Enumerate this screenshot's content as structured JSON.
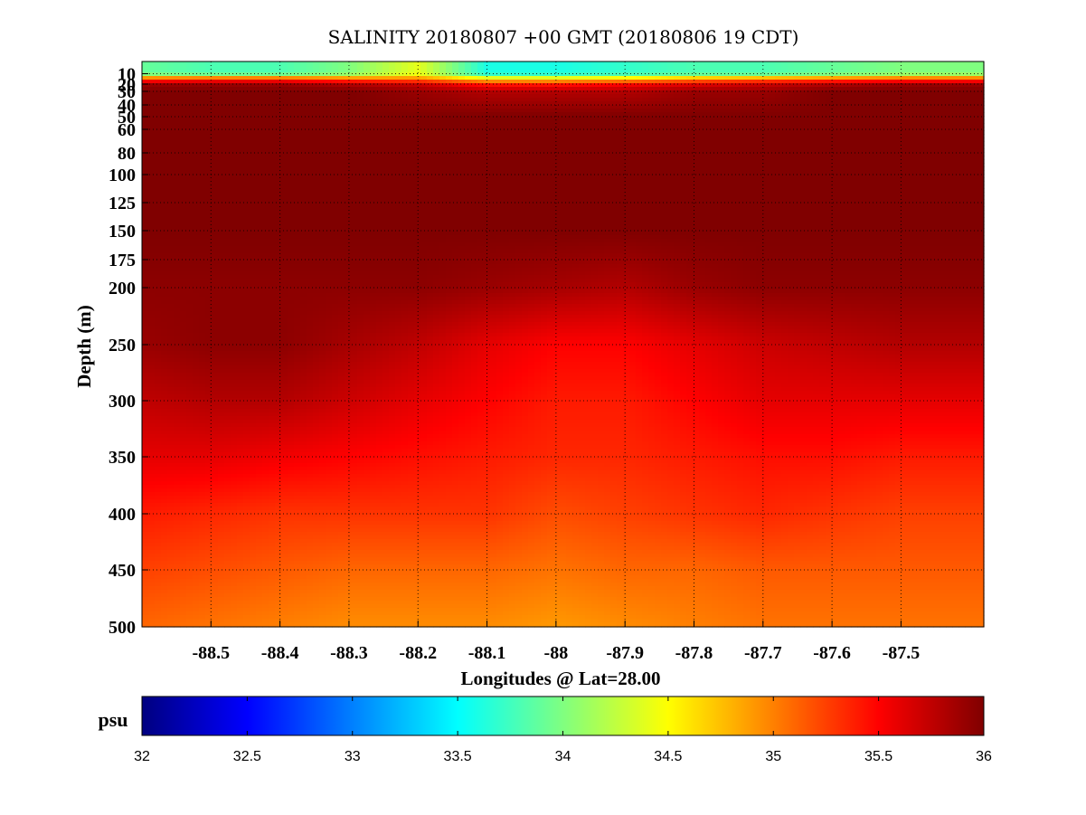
{
  "chart_data": {
    "type": "heatmap",
    "title": "SALINITY 20180807 +00 GMT (20180806 19 CDT)",
    "xlabel": "Longitudes @ Lat=28.00",
    "ylabel": "Depth (m)",
    "xlim": [
      -88.6,
      -87.38
    ],
    "ylim": [
      500,
      0
    ],
    "x_ticks": [
      -88.5,
      -88.4,
      -88.3,
      -88.2,
      -88.1,
      -88.0,
      -87.9,
      -87.8,
      -87.7,
      -87.6,
      -87.5
    ],
    "x_tick_labels": [
      "-88.5",
      "-88.4",
      "-88.3",
      "-88.2",
      "-88.1",
      "-88",
      "-87.9",
      "-87.8",
      "-87.7",
      "-87.6",
      "-87.5"
    ],
    "y_ticks": [
      10,
      20,
      30,
      40,
      50,
      60,
      80,
      100,
      125,
      150,
      175,
      200,
      250,
      300,
      350,
      400,
      450,
      500
    ],
    "y_tick_labels": [
      "10",
      "20",
      "30",
      "40",
      "50",
      "60",
      "80",
      "100",
      "125",
      "150",
      "175",
      "200",
      "250",
      "300",
      "350",
      "400",
      "450",
      "500"
    ],
    "y_scale": "stretched (non-uniform depth spacing)",
    "grid": true,
    "colormap": "jet",
    "colorbar": {
      "label": "psu",
      "range": [
        32,
        36
      ],
      "ticks": [
        32,
        32.5,
        33,
        33.5,
        34,
        34.5,
        35,
        35.5,
        36
      ],
      "tick_labels": [
        "32",
        "32.5",
        "33",
        "33.5",
        "34",
        "34.5",
        "35",
        "35.5",
        "36"
      ]
    },
    "field": {
      "x": [
        -88.6,
        -88.5,
        -88.4,
        -88.3,
        -88.2,
        -88.1,
        -88.0,
        -87.9,
        -87.8,
        -87.7,
        -87.6,
        -87.5,
        -87.38
      ],
      "depth": [
        0,
        10,
        15,
        20,
        30,
        50,
        100,
        150,
        200,
        250,
        300,
        350,
        400,
        450,
        500
      ],
      "values": [
        [
          33.9,
          33.8,
          33.8,
          34.0,
          34.4,
          33.6,
          33.6,
          33.7,
          33.8,
          33.8,
          33.9,
          34.0,
          34.0
        ],
        [
          33.9,
          33.8,
          33.8,
          34.0,
          34.4,
          33.6,
          33.6,
          33.7,
          33.8,
          33.8,
          33.9,
          34.0,
          34.0
        ],
        [
          35.2,
          35.3,
          35.3,
          35.1,
          35.0,
          34.6,
          34.6,
          34.7,
          34.9,
          35.0,
          35.1,
          35.2,
          35.2
        ],
        [
          35.9,
          35.9,
          35.9,
          35.8,
          35.7,
          35.4,
          35.4,
          35.5,
          35.6,
          35.7,
          35.8,
          35.9,
          35.9
        ],
        [
          36.0,
          36.0,
          36.0,
          36.0,
          35.9,
          35.8,
          35.8,
          35.8,
          35.9,
          35.9,
          36.0,
          36.0,
          36.0
        ],
        [
          36.0,
          36.0,
          36.0,
          36.0,
          36.0,
          36.0,
          36.0,
          36.0,
          36.0,
          36.0,
          36.0,
          36.0,
          36.0
        ],
        [
          36.0,
          36.0,
          36.0,
          36.0,
          36.0,
          36.0,
          36.0,
          36.0,
          36.0,
          36.0,
          36.0,
          36.0,
          36.0
        ],
        [
          36.0,
          36.0,
          36.0,
          36.0,
          36.0,
          36.0,
          36.0,
          36.0,
          36.0,
          36.0,
          36.0,
          36.0,
          36.0
        ],
        [
          35.95,
          35.95,
          35.95,
          35.95,
          35.95,
          35.9,
          35.85,
          35.8,
          35.9,
          35.95,
          35.95,
          35.95,
          35.95
        ],
        [
          35.9,
          35.95,
          35.95,
          35.85,
          35.75,
          35.6,
          35.5,
          35.5,
          35.6,
          35.7,
          35.75,
          35.8,
          35.8
        ],
        [
          35.75,
          35.8,
          35.8,
          35.7,
          35.6,
          35.5,
          35.4,
          35.4,
          35.5,
          35.6,
          35.6,
          35.6,
          35.6
        ],
        [
          35.6,
          35.6,
          35.55,
          35.5,
          35.45,
          35.4,
          35.35,
          35.35,
          35.4,
          35.45,
          35.45,
          35.4,
          35.4
        ],
        [
          35.4,
          35.35,
          35.3,
          35.3,
          35.3,
          35.3,
          35.2,
          35.25,
          35.3,
          35.35,
          35.3,
          35.25,
          35.25
        ],
        [
          35.25,
          35.2,
          35.15,
          35.1,
          35.1,
          35.1,
          35.05,
          35.1,
          35.1,
          35.15,
          35.15,
          35.15,
          35.15
        ],
        [
          35.1,
          35.05,
          35.0,
          34.95,
          34.95,
          34.95,
          34.9,
          34.95,
          35.0,
          35.05,
          35.05,
          35.05,
          35.05
        ]
      ]
    }
  }
}
